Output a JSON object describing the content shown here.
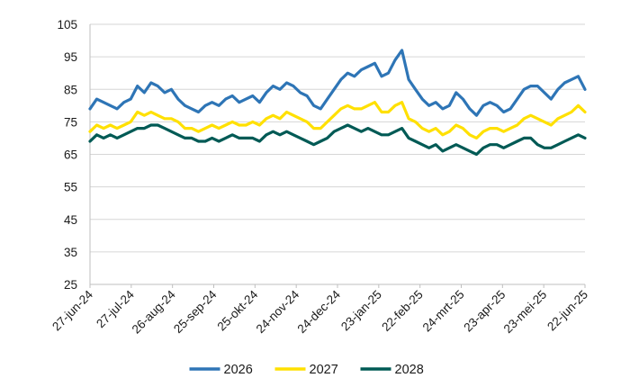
{
  "chart_data": {
    "type": "line",
    "title": "",
    "xlabel": "",
    "ylabel": "",
    "ylim": [
      25,
      105
    ],
    "y_ticks": [
      25,
      35,
      45,
      55,
      65,
      75,
      85,
      95,
      105
    ],
    "grid": "horizontal",
    "legend_position": "bottom",
    "x_ticks": [
      "27-jun-24",
      "27-jul-24",
      "26-aug-24",
      "25-sep-24",
      "25-okt-24",
      "24-nov-24",
      "24-dec-24",
      "23-jan-25",
      "22-feb-25",
      "24-mrt-25",
      "23-apr-25",
      "23-mei-25",
      "22-jun-25"
    ],
    "x": [
      "27-jun-24",
      "02-jul-24",
      "07-jul-24",
      "12-jul-24",
      "17-jul-24",
      "22-jul-24",
      "27-jul-24",
      "01-aug-24",
      "06-aug-24",
      "11-aug-24",
      "16-aug-24",
      "21-aug-24",
      "26-aug-24",
      "31-aug-24",
      "05-sep-24",
      "10-sep-24",
      "15-sep-24",
      "20-sep-24",
      "25-sep-24",
      "30-sep-24",
      "05-okt-24",
      "10-okt-24",
      "15-okt-24",
      "20-okt-24",
      "25-okt-24",
      "30-okt-24",
      "04-nov-24",
      "09-nov-24",
      "14-nov-24",
      "19-nov-24",
      "24-nov-24",
      "29-nov-24",
      "04-dec-24",
      "09-dec-24",
      "14-dec-24",
      "19-dec-24",
      "24-dec-24",
      "29-dec-24",
      "03-jan-25",
      "08-jan-25",
      "13-jan-25",
      "18-jan-25",
      "23-jan-25",
      "28-jan-25",
      "02-feb-25",
      "07-feb-25",
      "12-feb-25",
      "17-feb-25",
      "22-feb-25",
      "27-feb-25",
      "04-mrt-25",
      "09-mrt-25",
      "14-mrt-25",
      "19-mrt-25",
      "24-mrt-25",
      "29-mrt-25",
      "03-apr-25",
      "08-apr-25",
      "13-apr-25",
      "18-apr-25",
      "23-apr-25",
      "28-apr-25",
      "03-mei-25",
      "08-mei-25",
      "13-mei-25",
      "18-mei-25",
      "23-mei-25",
      "28-mei-25",
      "02-jun-25",
      "07-jun-25",
      "12-jun-25",
      "17-jun-25",
      "22-jun-25",
      "26-jun-25"
    ],
    "series": [
      {
        "name": "2026",
        "color": "#2E75B6",
        "values": [
          79,
          82,
          81,
          80,
          79,
          81,
          82,
          86,
          84,
          87,
          86,
          84,
          85,
          82,
          80,
          79,
          78,
          80,
          81,
          80,
          82,
          83,
          81,
          82,
          83,
          81,
          84,
          86,
          85,
          87,
          86,
          84,
          83,
          80,
          79,
          82,
          85,
          88,
          90,
          89,
          91,
          92,
          93,
          89,
          90,
          94,
          97,
          88,
          85,
          82,
          80,
          81,
          79,
          80,
          84,
          82,
          79,
          77,
          80,
          81,
          80,
          78,
          79,
          82,
          85,
          86,
          86,
          84,
          82,
          85,
          87,
          88,
          89,
          85
        ]
      },
      {
        "name": "2027",
        "color": "#FFE000",
        "values": [
          72,
          74,
          73,
          74,
          73,
          74,
          75,
          78,
          77,
          78,
          77,
          76,
          76,
          75,
          73,
          73,
          72,
          73,
          74,
          73,
          74,
          75,
          74,
          74,
          75,
          74,
          76,
          77,
          76,
          78,
          77,
          76,
          75,
          73,
          73,
          75,
          77,
          79,
          80,
          79,
          79,
          80,
          81,
          78,
          78,
          80,
          81,
          76,
          75,
          73,
          72,
          73,
          71,
          72,
          74,
          73,
          71,
          70,
          72,
          73,
          73,
          72,
          73,
          74,
          76,
          77,
          76,
          75,
          74,
          76,
          77,
          78,
          80,
          78
        ]
      },
      {
        "name": "2028",
        "color": "#005A55",
        "values": [
          69,
          71,
          70,
          71,
          70,
          71,
          72,
          73,
          73,
          74,
          74,
          73,
          72,
          71,
          70,
          70,
          69,
          69,
          70,
          69,
          70,
          71,
          70,
          70,
          70,
          69,
          71,
          72,
          71,
          72,
          71,
          70,
          69,
          68,
          69,
          70,
          72,
          73,
          74,
          73,
          72,
          73,
          72,
          71,
          71,
          72,
          73,
          70,
          69,
          68,
          67,
          68,
          66,
          67,
          68,
          67,
          66,
          65,
          67,
          68,
          68,
          67,
          68,
          69,
          70,
          70,
          68,
          67,
          67,
          68,
          69,
          70,
          71,
          70
        ]
      }
    ]
  }
}
